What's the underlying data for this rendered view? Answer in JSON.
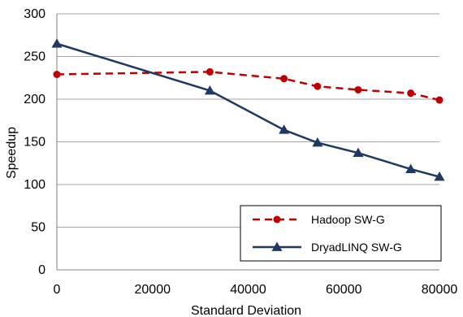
{
  "chart_data": {
    "type": "line",
    "xlabel": "Standard Deviation",
    "ylabel": "Speedup",
    "xlim": [
      0,
      80000
    ],
    "ylim": [
      0,
      300
    ],
    "x_ticks": [
      "0",
      "20000",
      "40000",
      "60000",
      "80000"
    ],
    "y_ticks": [
      "0",
      "50",
      "100",
      "150",
      "200",
      "250",
      "300"
    ],
    "grid": "horizontal",
    "legend_position": "bottom-right",
    "series": [
      {
        "name": "Hadoop SW-G",
        "color": "#c00000",
        "line_style": "dashed",
        "marker": "circle",
        "x": [
          0,
          32000,
          47500,
          54500,
          63000,
          74000,
          80000
        ],
        "y": [
          229,
          232,
          224,
          215,
          211,
          207,
          199
        ]
      },
      {
        "name": "DryadLINQ SW-G",
        "color": "#1f3864",
        "line_style": "solid",
        "marker": "triangle",
        "x": [
          0,
          32000,
          47500,
          54500,
          63000,
          74000,
          80000
        ],
        "y": [
          265,
          210,
          164,
          149,
          137,
          118,
          109
        ]
      }
    ]
  }
}
